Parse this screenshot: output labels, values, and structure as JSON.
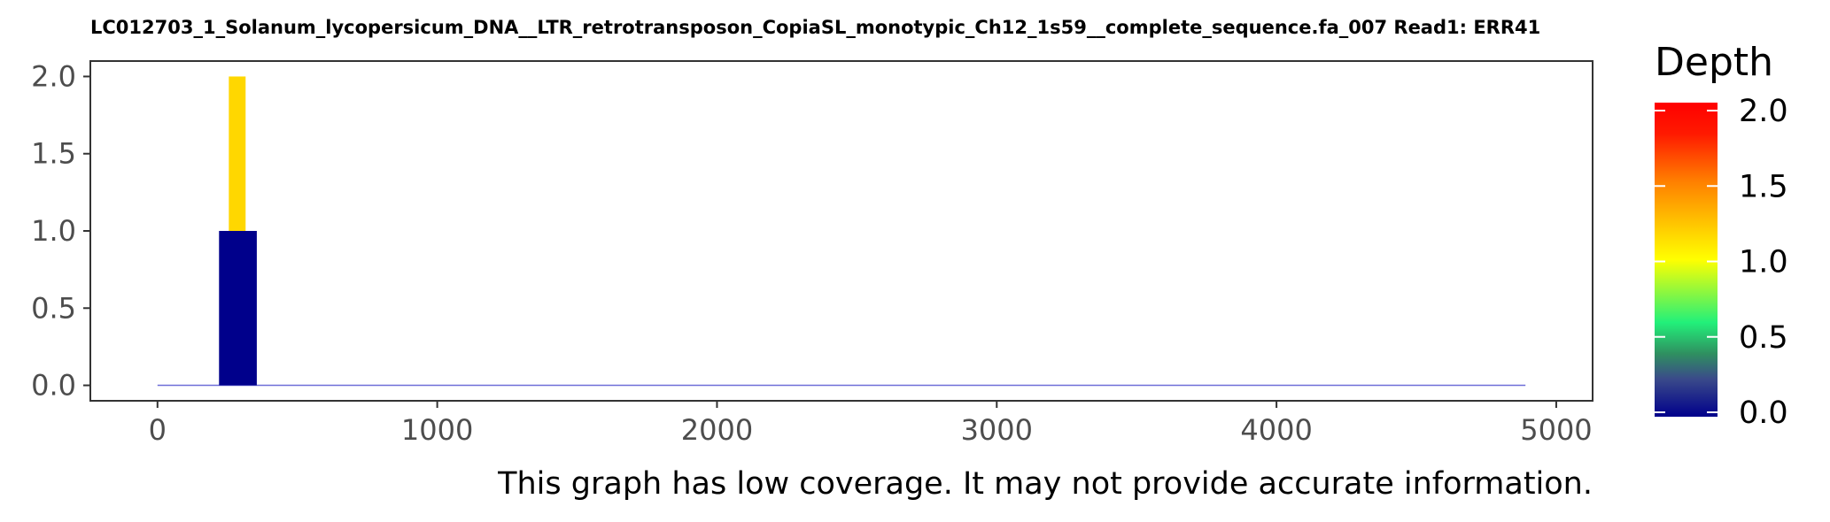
{
  "chart_data": {
    "type": "bar",
    "title": "LC012703_1_Solanum_lycopersicum_DNA__LTR_retrotransposon_CopiaSL_monotypic_Ch12_1s59__complete_sequence.fa_007   Read1: ERR41",
    "caption": "This graph has low coverage. It may not provide accurate information.",
    "xlim": [
      -240,
      5130
    ],
    "ylim": [
      -0.1,
      2.1
    ],
    "x_ticks": [
      0,
      1000,
      2000,
      3000,
      4000,
      5000
    ],
    "x_tick_labels": [
      "0",
      "1000",
      "2000",
      "3000",
      "4000",
      "5000"
    ],
    "y_ticks": [
      0.0,
      0.5,
      1.0,
      1.5,
      2.0
    ],
    "y_tick_labels": [
      "0.0",
      "0.5",
      "1.0",
      "1.5",
      "2.0"
    ],
    "baseline": {
      "x_start": 0,
      "x_end": 4890,
      "value": 0,
      "color": "#6e6ed8"
    },
    "bars": [
      {
        "x_start": 220,
        "x_end": 355,
        "value": 1,
        "color": "#00008b"
      },
      {
        "x_start": 255,
        "x_end": 315,
        "y_start": 1,
        "value": 2,
        "color": "#ffd700"
      }
    ],
    "grid": false,
    "legend": {
      "title": "Depth",
      "placement": "right",
      "range": [
        0,
        2
      ],
      "ticks": [
        0.0,
        0.5,
        1.0,
        1.5,
        2.0
      ],
      "tick_labels": [
        "0.0",
        "0.5",
        "1.0",
        "1.5",
        "2.0"
      ],
      "colors": [
        {
          "offset": 0.0,
          "color": "#00008b"
        },
        {
          "offset": 0.12,
          "color": "#3a4a8a"
        },
        {
          "offset": 0.2,
          "color": "#2f8f60"
        },
        {
          "offset": 0.3,
          "color": "#22f07a"
        },
        {
          "offset": 0.5,
          "color": "#ffff00"
        },
        {
          "offset": 0.58,
          "color": "#ffd700"
        },
        {
          "offset": 0.75,
          "color": "#ff7f00"
        },
        {
          "offset": 0.9,
          "color": "#ff1a00"
        },
        {
          "offset": 1.0,
          "color": "#ff0000"
        }
      ]
    }
  }
}
